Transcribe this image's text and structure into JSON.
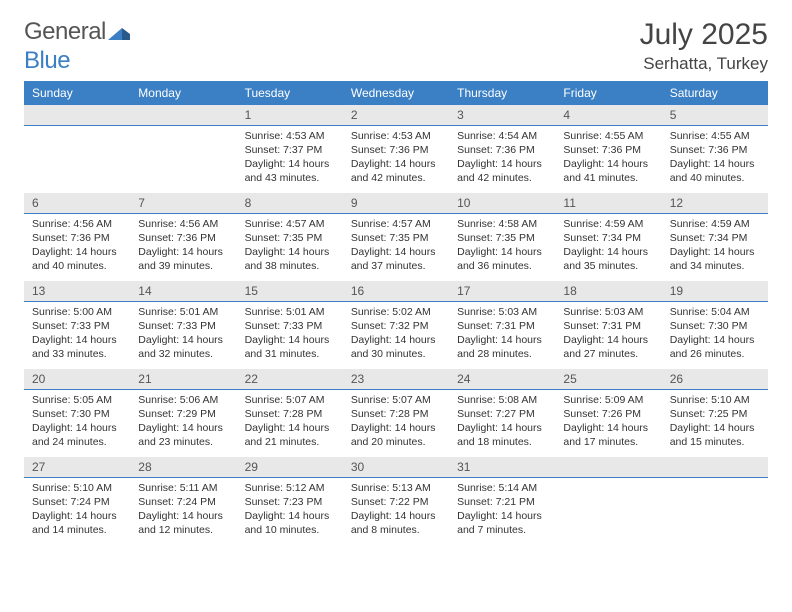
{
  "logo": {
    "text_a": "General",
    "text_b": "Blue"
  },
  "title": "July 2025",
  "location": "Serhatta, Turkey",
  "header_color": "#3b7fc4",
  "daynum_bg": "#e8e8e8",
  "weekdays": [
    "Sunday",
    "Monday",
    "Tuesday",
    "Wednesday",
    "Thursday",
    "Friday",
    "Saturday"
  ],
  "weeks": [
    [
      null,
      null,
      {
        "n": "1",
        "sr": "4:53 AM",
        "ss": "7:37 PM",
        "dl": "14 hours and 43 minutes."
      },
      {
        "n": "2",
        "sr": "4:53 AM",
        "ss": "7:36 PM",
        "dl": "14 hours and 42 minutes."
      },
      {
        "n": "3",
        "sr": "4:54 AM",
        "ss": "7:36 PM",
        "dl": "14 hours and 42 minutes."
      },
      {
        "n": "4",
        "sr": "4:55 AM",
        "ss": "7:36 PM",
        "dl": "14 hours and 41 minutes."
      },
      {
        "n": "5",
        "sr": "4:55 AM",
        "ss": "7:36 PM",
        "dl": "14 hours and 40 minutes."
      }
    ],
    [
      {
        "n": "6",
        "sr": "4:56 AM",
        "ss": "7:36 PM",
        "dl": "14 hours and 40 minutes."
      },
      {
        "n": "7",
        "sr": "4:56 AM",
        "ss": "7:36 PM",
        "dl": "14 hours and 39 minutes."
      },
      {
        "n": "8",
        "sr": "4:57 AM",
        "ss": "7:35 PM",
        "dl": "14 hours and 38 minutes."
      },
      {
        "n": "9",
        "sr": "4:57 AM",
        "ss": "7:35 PM",
        "dl": "14 hours and 37 minutes."
      },
      {
        "n": "10",
        "sr": "4:58 AM",
        "ss": "7:35 PM",
        "dl": "14 hours and 36 minutes."
      },
      {
        "n": "11",
        "sr": "4:59 AM",
        "ss": "7:34 PM",
        "dl": "14 hours and 35 minutes."
      },
      {
        "n": "12",
        "sr": "4:59 AM",
        "ss": "7:34 PM",
        "dl": "14 hours and 34 minutes."
      }
    ],
    [
      {
        "n": "13",
        "sr": "5:00 AM",
        "ss": "7:33 PM",
        "dl": "14 hours and 33 minutes."
      },
      {
        "n": "14",
        "sr": "5:01 AM",
        "ss": "7:33 PM",
        "dl": "14 hours and 32 minutes."
      },
      {
        "n": "15",
        "sr": "5:01 AM",
        "ss": "7:33 PM",
        "dl": "14 hours and 31 minutes."
      },
      {
        "n": "16",
        "sr": "5:02 AM",
        "ss": "7:32 PM",
        "dl": "14 hours and 30 minutes."
      },
      {
        "n": "17",
        "sr": "5:03 AM",
        "ss": "7:31 PM",
        "dl": "14 hours and 28 minutes."
      },
      {
        "n": "18",
        "sr": "5:03 AM",
        "ss": "7:31 PM",
        "dl": "14 hours and 27 minutes."
      },
      {
        "n": "19",
        "sr": "5:04 AM",
        "ss": "7:30 PM",
        "dl": "14 hours and 26 minutes."
      }
    ],
    [
      {
        "n": "20",
        "sr": "5:05 AM",
        "ss": "7:30 PM",
        "dl": "14 hours and 24 minutes."
      },
      {
        "n": "21",
        "sr": "5:06 AM",
        "ss": "7:29 PM",
        "dl": "14 hours and 23 minutes."
      },
      {
        "n": "22",
        "sr": "5:07 AM",
        "ss": "7:28 PM",
        "dl": "14 hours and 21 minutes."
      },
      {
        "n": "23",
        "sr": "5:07 AM",
        "ss": "7:28 PM",
        "dl": "14 hours and 20 minutes."
      },
      {
        "n": "24",
        "sr": "5:08 AM",
        "ss": "7:27 PM",
        "dl": "14 hours and 18 minutes."
      },
      {
        "n": "25",
        "sr": "5:09 AM",
        "ss": "7:26 PM",
        "dl": "14 hours and 17 minutes."
      },
      {
        "n": "26",
        "sr": "5:10 AM",
        "ss": "7:25 PM",
        "dl": "14 hours and 15 minutes."
      }
    ],
    [
      {
        "n": "27",
        "sr": "5:10 AM",
        "ss": "7:24 PM",
        "dl": "14 hours and 14 minutes."
      },
      {
        "n": "28",
        "sr": "5:11 AM",
        "ss": "7:24 PM",
        "dl": "14 hours and 12 minutes."
      },
      {
        "n": "29",
        "sr": "5:12 AM",
        "ss": "7:23 PM",
        "dl": "14 hours and 10 minutes."
      },
      {
        "n": "30",
        "sr": "5:13 AM",
        "ss": "7:22 PM",
        "dl": "14 hours and 8 minutes."
      },
      {
        "n": "31",
        "sr": "5:14 AM",
        "ss": "7:21 PM",
        "dl": "14 hours and 7 minutes."
      },
      null,
      null
    ]
  ],
  "labels": {
    "sunrise": "Sunrise:",
    "sunset": "Sunset:",
    "daylight": "Daylight:"
  }
}
